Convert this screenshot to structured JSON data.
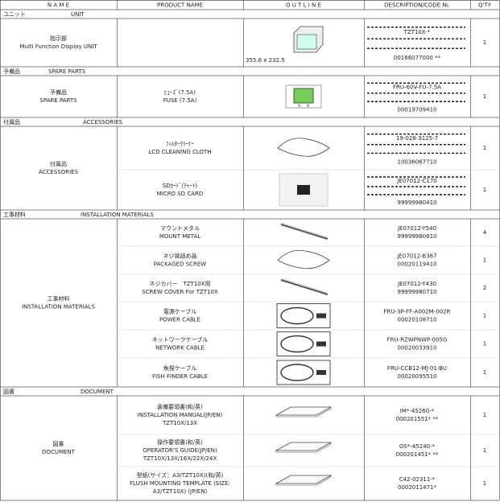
{
  "header": [
    "N A M E",
    "PRODUCT NAME",
    "O U T L I N E",
    "DESCRIPTION/CODE №.",
    "Q'TY"
  ],
  "sections": [
    {
      "title_jp": "ユニット",
      "title_en": "UNIT",
      "name_jp": "指示部",
      "name_en": "Multi Function Display UNIT",
      "items": [
        {
          "product": [],
          "outline_note": "355.6 x 232.5",
          "codes": [
            "TZT10X-*",
            "00166077000  **"
          ],
          "qty": "1"
        }
      ]
    },
    {
      "title_jp": "予備品",
      "title_en": "SPARE PARTS",
      "name_jp": "予備品",
      "name_en": "SPARE PARTS",
      "items": [
        {
          "product": [
            "ﾋｭｰｽﾞ(7.5A)",
            "FUSE (7.5A)"
          ],
          "codes": [
            "FRU-60V-FU-7.5A",
            "00019709410"
          ],
          "qty": "1"
        }
      ]
    },
    {
      "title_jp": "付属品",
      "title_en": "ACCESSORIES",
      "name_jp": "付属品",
      "name_en": "ACCESSORIES",
      "items": [
        {
          "product": [
            "ﾌｨﾙﾀｰｸﾘｰﾅｰ",
            "LCD CLEANING CLOTH"
          ],
          "codes": [
            "19-028-3125-7",
            "10036067710"
          ],
          "qty": "1"
        },
        {
          "product": [
            "SDｶｰﾄﾞ(ﾁｬｰﾄ)",
            "MICRO SD CARD"
          ],
          "codes": [
            "JE07012-C170",
            "99999980410"
          ],
          "qty": "1"
        }
      ]
    },
    {
      "title_jp": "工事材料",
      "title_en": "INSTALLATION MATERIALS",
      "name_jp": "工事材料",
      "name_en": "INSTALLATION MATERIALS",
      "items": [
        {
          "product": [
            "マウントメタル",
            "MOUNT METAL"
          ],
          "codes": [
            "JE07012-Y540",
            "99999980610"
          ],
          "qty": "4"
        },
        {
          "product": [
            "ネジ袋詰め品",
            "PACKAGED SCREW"
          ],
          "codes": [
            "JE07012-B367",
            "00020119410"
          ],
          "qty": "1"
        },
        {
          "product": [
            "ネジカバー　TZT10X用",
            "SCREW COVER  For TZT10X"
          ],
          "codes": [
            "JE07012-Y430",
            "99999980710"
          ],
          "qty": "2"
        },
        {
          "product": [
            "電源ケーブル",
            "POWER CABLE"
          ],
          "codes": [
            "FRU-3P-FF-A002M-002R",
            "00020108710"
          ],
          "qty": "1"
        },
        {
          "product": [
            "ネットワークケーブル",
            "NETWORK CABLE"
          ],
          "codes": [
            "FRU-RZWPNWP-005G",
            "00020033910"
          ],
          "qty": "1"
        },
        {
          "product": [
            "魚探ケーブル",
            "FISH FINDER CABLE"
          ],
          "codes": [
            "FRU-CCB12-MJ-01-BU",
            "00020095510"
          ],
          "qty": "1"
        }
      ]
    },
    {
      "title_jp": "図書",
      "title_en": "DOCUMENT",
      "name_jp": "図書",
      "name_en": "DOCUMENT",
      "items": [
        {
          "product": [
            "装備要領書(和/英)",
            "INSTALLATION MANUAL(JP/EN)",
            "TZT10X/13X"
          ],
          "codes": [
            "IM*-45260-*",
            "000201551*  **"
          ],
          "qty": "1"
        },
        {
          "product": [
            "操作要領書(和/英)",
            "OPERATOR'S GUIDE(JP/EN)",
            "TZT10X/13X/16X/22X/24X"
          ],
          "codes": [
            "OS*-45240-*",
            "000201451*  **"
          ],
          "qty": "1"
        },
        {
          "product": [
            "型紙(サイズ：A3/TZT10X)(和/英)",
            "FLUSH MOUNTING TEMPLATE (SIZE:",
            "A3/TZT10X) (JP/EN)"
          ],
          "codes": [
            "C42-02311-*",
            "0002011471*"
          ],
          "qty": "1"
        }
      ]
    }
  ]
}
